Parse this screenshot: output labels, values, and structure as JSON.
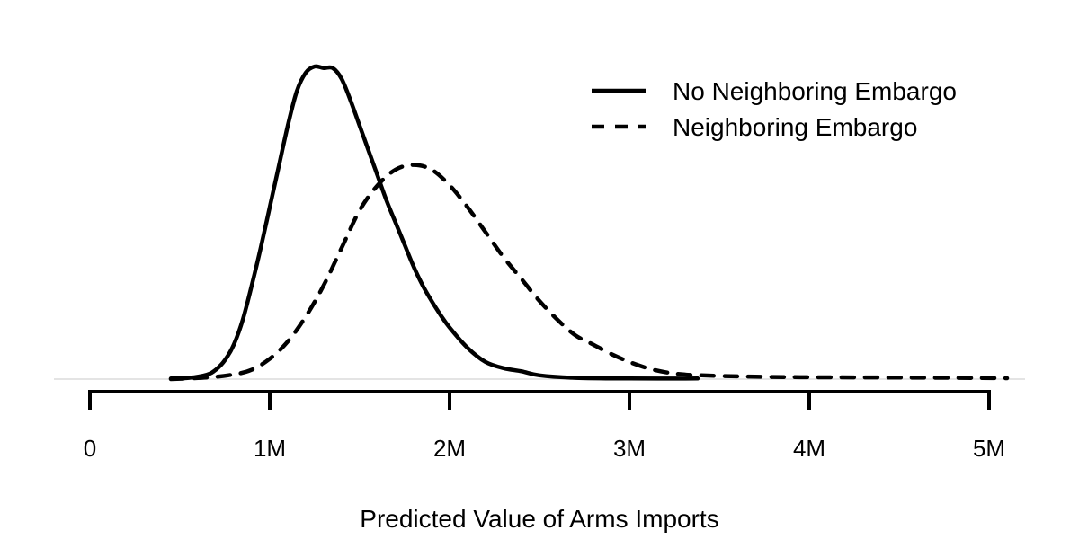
{
  "chart_data": {
    "type": "line",
    "xlabel": "Predicted Value of Arms Imports",
    "ylabel": "",
    "xlim": [
      0,
      5000000
    ],
    "ticks": [
      {
        "value": 0,
        "label": "0"
      },
      {
        "value": 1000000,
        "label": "1M"
      },
      {
        "value": 2000000,
        "label": "2M"
      },
      {
        "value": 3000000,
        "label": "3M"
      },
      {
        "value": 4000000,
        "label": "4M"
      },
      {
        "value": 5000000,
        "label": "5M"
      }
    ],
    "grid": false,
    "legend_position": "top-right",
    "y_axis_shown": false,
    "series": [
      {
        "name": "No Neighboring Embargo",
        "style": "solid",
        "color": "#000000",
        "x": [
          450000,
          550000,
          650000,
          700000,
          750000,
          800000,
          850000,
          900000,
          950000,
          1000000,
          1050000,
          1100000,
          1150000,
          1200000,
          1250000,
          1300000,
          1350000,
          1400000,
          1450000,
          1500000,
          1550000,
          1600000,
          1650000,
          1700000,
          1750000,
          1800000,
          1850000,
          1900000,
          1950000,
          2000000,
          2100000,
          2200000,
          2300000,
          2400000,
          2500000,
          2700000,
          3000000,
          3380000
        ],
        "y": [
          0.002,
          0.004,
          0.014,
          0.03,
          0.06,
          0.11,
          0.19,
          0.3,
          0.42,
          0.55,
          0.68,
          0.81,
          0.92,
          0.98,
          1.0,
          0.995,
          0.995,
          0.96,
          0.89,
          0.81,
          0.73,
          0.65,
          0.57,
          0.5,
          0.43,
          0.36,
          0.3,
          0.25,
          0.205,
          0.165,
          0.1,
          0.055,
          0.035,
          0.025,
          0.012,
          0.004,
          0.002,
          0.002
        ]
      },
      {
        "name": "Neighboring Embargo",
        "style": "dashed",
        "color": "#000000",
        "x": [
          450000,
          650000,
          800000,
          900000,
          1000000,
          1100000,
          1200000,
          1300000,
          1400000,
          1500000,
          1600000,
          1700000,
          1800000,
          1900000,
          2000000,
          2100000,
          2200000,
          2300000,
          2400000,
          2500000,
          2600000,
          2700000,
          2800000,
          2900000,
          3000000,
          3100000,
          3200000,
          3300000,
          3400000,
          3600000,
          3800000,
          4000000,
          4500000,
          5100000
        ],
        "y": [
          0.0,
          0.005,
          0.015,
          0.03,
          0.065,
          0.12,
          0.2,
          0.3,
          0.42,
          0.54,
          0.62,
          0.67,
          0.685,
          0.67,
          0.62,
          0.55,
          0.47,
          0.39,
          0.32,
          0.25,
          0.19,
          0.14,
          0.11,
          0.08,
          0.055,
          0.035,
          0.022,
          0.015,
          0.012,
          0.009,
          0.007,
          0.006,
          0.005,
          0.003
        ]
      }
    ]
  }
}
